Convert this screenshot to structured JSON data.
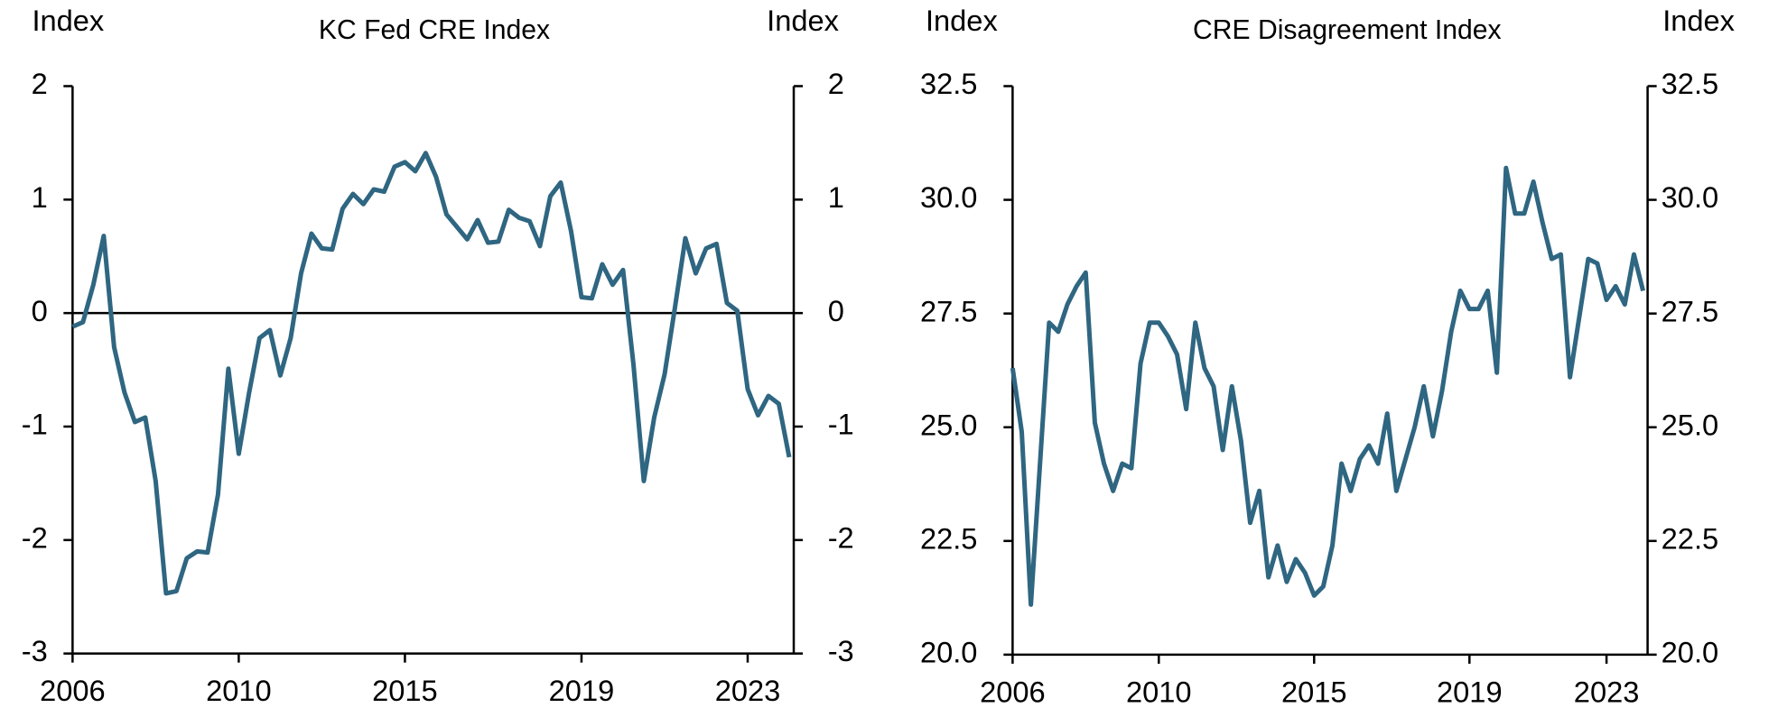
{
  "chart_data": [
    {
      "type": "line",
      "title": "KC Fed CRE Index",
      "ylabel": "Index",
      "y2label": "Index",
      "categories": [
        "2006",
        null,
        null,
        null,
        null,
        null,
        null,
        null,
        null,
        null,
        null,
        null,
        null,
        null,
        null,
        null,
        "2010",
        null,
        null,
        null,
        null,
        null,
        null,
        null,
        null,
        null,
        null,
        null,
        null,
        null,
        null,
        null,
        "2015",
        null,
        null,
        null,
        null,
        null,
        null,
        null,
        null,
        null,
        null,
        null,
        null,
        null,
        null,
        null,
        null,
        "2019",
        null,
        null,
        null,
        null,
        null,
        null,
        null,
        null,
        null,
        null,
        null,
        null,
        null,
        null,
        null,
        "2023",
        null,
        null,
        null,
        null
      ],
      "series": [
        {
          "name": "KC Fed CRE Index",
          "color": "#2f6681",
          "values": [
            -0.12,
            -0.08,
            0.25,
            0.68,
            -0.3,
            -0.7,
            -0.96,
            -0.92,
            -1.48,
            -2.47,
            -2.45,
            -2.16,
            -2.1,
            -2.11,
            -1.6,
            -0.49,
            -1.24,
            -0.7,
            -0.22,
            -0.15,
            -0.55,
            -0.22,
            0.35,
            0.7,
            0.57,
            0.56,
            0.92,
            1.05,
            0.96,
            1.09,
            1.07,
            1.29,
            1.33,
            1.25,
            1.41,
            1.2,
            0.87,
            0.76,
            0.65,
            0.82,
            0.62,
            0.63,
            0.91,
            0.84,
            0.81,
            0.59,
            1.03,
            1.15,
            0.72,
            0.14,
            0.13,
            0.43,
            0.25,
            0.38,
            -0.45,
            -1.48,
            -0.92,
            -0.54,
            0.05,
            0.66,
            0.35,
            0.57,
            0.61,
            0.09,
            0.02,
            -0.67,
            -0.9,
            -0.73,
            -0.8,
            -1.27
          ]
        }
      ],
      "ylim": [
        -3,
        2
      ],
      "yticks": [
        -3,
        -2,
        -1,
        0,
        1,
        2
      ],
      "y2lim": [
        -3,
        2
      ],
      "y2ticks": [
        -3,
        -2,
        -1,
        0,
        1,
        2
      ]
    },
    {
      "type": "line",
      "title": "CRE Disagreement Index",
      "ylabel": "Index",
      "y2label": "Index",
      "categories": [
        "2006",
        null,
        null,
        null,
        null,
        null,
        null,
        null,
        null,
        null,
        null,
        null,
        null,
        null,
        null,
        null,
        "2010",
        null,
        null,
        null,
        null,
        null,
        null,
        null,
        null,
        null,
        null,
        null,
        null,
        null,
        null,
        null,
        null,
        "2015",
        null,
        null,
        null,
        null,
        null,
        null,
        null,
        null,
        null,
        null,
        null,
        null,
        null,
        null,
        null,
        null,
        "2019",
        null,
        null,
        null,
        null,
        null,
        null,
        null,
        null,
        null,
        null,
        null,
        null,
        null,
        null,
        "2023",
        null,
        null,
        null,
        null
      ],
      "series": [
        {
          "name": "CRE Disagreement Index",
          "color": "#2f6681",
          "values": [
            26.3,
            24.9,
            21.1,
            24.2,
            27.3,
            27.1,
            27.7,
            28.1,
            28.4,
            25.1,
            24.2,
            23.6,
            24.2,
            24.1,
            26.4,
            27.3,
            27.3,
            27.0,
            26.6,
            25.4,
            27.3,
            26.3,
            25.9,
            24.5,
            25.9,
            24.7,
            22.9,
            23.6,
            21.7,
            22.4,
            21.6,
            22.1,
            21.8,
            21.3,
            21.5,
            22.4,
            24.2,
            23.6,
            24.3,
            24.6,
            24.2,
            25.3,
            23.6,
            24.3,
            25.0,
            25.9,
            24.8,
            25.8,
            27.1,
            28.0,
            27.6,
            27.6,
            28.0,
            26.2,
            30.7,
            29.7,
            29.7,
            30.4,
            29.5,
            28.7,
            28.8,
            26.1,
            27.4,
            28.7,
            28.6,
            27.8,
            28.1,
            27.7,
            28.8,
            28.0
          ]
        }
      ],
      "ylim": [
        20,
        32.5
      ],
      "yticks": [
        {
          "value": 20,
          "label": "20.0"
        },
        22.5,
        {
          "value": 25,
          "label": "25.0"
        },
        27.5,
        {
          "value": 30,
          "label": "30.0"
        },
        32.5
      ],
      "y2lim": [
        20,
        32.5
      ],
      "y2ticks": [
        {
          "value": 20,
          "label": "20.0"
        },
        22.5,
        {
          "value": 25,
          "label": "25.0"
        },
        27.5,
        {
          "value": 30,
          "label": "30.0"
        },
        32.5
      ]
    }
  ]
}
